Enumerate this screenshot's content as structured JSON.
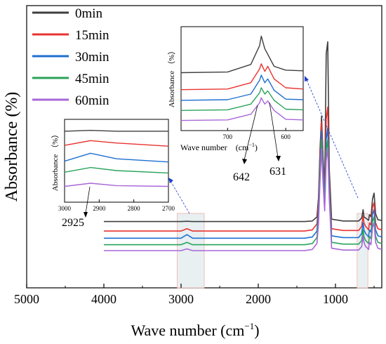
{
  "chart_data": [
    {
      "id": "main",
      "type": "line",
      "title": "",
      "xlabel": "Wave number (cm",
      "xlabel_sup": "−1",
      "xlabel_tail": ")",
      "ylabel": "Absorbance (%)",
      "xlim": [
        5000,
        400
      ],
      "x_ticks": [
        5000,
        4000,
        3000,
        2000,
        1000
      ],
      "x_tick_labels": [
        "5000",
        "4000",
        "3000",
        "2000",
        "1000"
      ],
      "grid": false,
      "legend_position": "top-left",
      "highlight_regions": [
        [
          3050,
          2700
        ],
        [
          720,
          580
        ]
      ],
      "series": [
        {
          "name": "0min",
          "color": "#3f3f3f",
          "baseline": 0.52,
          "x": [
            4000,
            3000,
            2925,
            2850,
            2000,
            1400,
            1300,
            1240,
            1220,
            1200,
            1180,
            1160,
            1140,
            1120,
            1100,
            1080,
            1050,
            900,
            700,
            660,
            642,
            631,
            610,
            570,
            560,
            540,
            520,
            500,
            480,
            450,
            400
          ],
          "y": [
            0.52,
            0.52,
            0.525,
            0.52,
            0.52,
            0.52,
            0.53,
            0.6,
            0.92,
            1.75,
            2.3,
            1.6,
            1.1,
            3.35,
            3.55,
            1.4,
            0.56,
            0.53,
            0.53,
            0.58,
            0.72,
            0.6,
            0.58,
            0.54,
            0.64,
            0.6,
            0.9,
            1.0,
            0.65,
            0.55,
            0.54
          ]
        },
        {
          "name": "15min",
          "color": "#e8332f",
          "baseline": 0.36,
          "x": [
            4000,
            3000,
            2925,
            2850,
            2000,
            1400,
            1300,
            1240,
            1220,
            1200,
            1180,
            1160,
            1140,
            1120,
            1100,
            1080,
            1050,
            900,
            700,
            660,
            642,
            631,
            610,
            570,
            560,
            540,
            520,
            500,
            480,
            450,
            400
          ],
          "y": [
            0.36,
            0.36,
            0.4,
            0.36,
            0.36,
            0.36,
            0.38,
            0.48,
            0.82,
            1.65,
            2.2,
            1.5,
            1.0,
            2.25,
            2.45,
            1.2,
            0.4,
            0.37,
            0.37,
            0.44,
            0.62,
            0.5,
            0.44,
            0.38,
            0.5,
            0.46,
            0.76,
            0.84,
            0.5,
            0.4,
            0.38
          ]
        },
        {
          "name": "30min",
          "color": "#1f6fd1",
          "baseline": 0.24,
          "x": [
            4000,
            3000,
            2925,
            2850,
            2000,
            1400,
            1300,
            1240,
            1220,
            1200,
            1180,
            1160,
            1140,
            1120,
            1100,
            1080,
            1050,
            900,
            700,
            660,
            642,
            631,
            610,
            570,
            560,
            540,
            520,
            500,
            480,
            450,
            400
          ],
          "y": [
            0.24,
            0.24,
            0.3,
            0.24,
            0.24,
            0.24,
            0.26,
            0.36,
            0.7,
            1.5,
            2.05,
            1.4,
            0.9,
            1.9,
            2.1,
            1.1,
            0.28,
            0.25,
            0.25,
            0.32,
            0.5,
            0.38,
            0.32,
            0.26,
            0.38,
            0.34,
            0.64,
            0.72,
            0.38,
            0.28,
            0.26
          ]
        },
        {
          "name": "45min",
          "color": "#2aa35a",
          "baseline": 0.13,
          "x": [
            4000,
            3000,
            2925,
            2850,
            2000,
            1400,
            1300,
            1240,
            1220,
            1200,
            1180,
            1160,
            1140,
            1120,
            1100,
            1080,
            1050,
            900,
            700,
            660,
            642,
            631,
            610,
            570,
            560,
            540,
            520,
            500,
            480,
            450,
            400
          ],
          "y": [
            0.13,
            0.13,
            0.17,
            0.13,
            0.13,
            0.13,
            0.15,
            0.25,
            0.58,
            1.35,
            1.9,
            1.28,
            0.8,
            1.7,
            1.9,
            1.0,
            0.17,
            0.14,
            0.14,
            0.2,
            0.38,
            0.27,
            0.2,
            0.15,
            0.27,
            0.23,
            0.52,
            0.6,
            0.27,
            0.17,
            0.15
          ]
        },
        {
          "name": "60min",
          "color": "#a866d8",
          "baseline": 0.03,
          "x": [
            4000,
            3000,
            2925,
            2850,
            2000,
            1400,
            1300,
            1240,
            1220,
            1200,
            1180,
            1160,
            1140,
            1120,
            1100,
            1080,
            1050,
            900,
            700,
            660,
            642,
            631,
            610,
            570,
            560,
            540,
            520,
            500,
            480,
            450,
            400
          ],
          "y": [
            0.03,
            0.03,
            0.06,
            0.03,
            0.03,
            0.03,
            0.05,
            0.15,
            0.48,
            1.2,
            1.75,
            1.15,
            0.7,
            1.55,
            1.75,
            0.9,
            0.07,
            0.04,
            0.04,
            0.1,
            0.28,
            0.17,
            0.1,
            0.05,
            0.17,
            0.13,
            0.42,
            0.5,
            0.17,
            0.07,
            0.05
          ]
        }
      ]
    },
    {
      "id": "inset-left",
      "type": "line",
      "xlabel": "Wave number",
      "xlabel_tail": "(cm",
      "xlabel_sup": "−1",
      "xlabel_close": ")",
      "ylabel": "Absorbance （%）",
      "xlim": [
        3000,
        2700
      ],
      "x_ticks": [
        3000,
        2900,
        2800,
        2700
      ],
      "x_tick_labels": [
        "3000",
        "2900",
        "2800",
        "2700"
      ],
      "annotation": "2925",
      "series": [
        {
          "name": "0min",
          "color": "#3f3f3f",
          "x": [
            3000,
            2925,
            2850,
            2700
          ],
          "y": [
            0.9,
            0.91,
            0.9,
            0.9
          ]
        },
        {
          "name": "15min",
          "color": "#e8332f",
          "x": [
            3000,
            2925,
            2850,
            2700
          ],
          "y": [
            0.72,
            0.78,
            0.75,
            0.71
          ]
        },
        {
          "name": "30min",
          "color": "#1f6fd1",
          "x": [
            3000,
            2925,
            2850,
            2700
          ],
          "y": [
            0.52,
            0.62,
            0.55,
            0.51
          ]
        },
        {
          "name": "45min",
          "color": "#2aa35a",
          "x": [
            3000,
            2925,
            2850,
            2700
          ],
          "y": [
            0.38,
            0.44,
            0.4,
            0.37
          ]
        },
        {
          "name": "60min",
          "color": "#a866d8",
          "x": [
            3000,
            2925,
            2850,
            2700
          ],
          "y": [
            0.2,
            0.24,
            0.21,
            0.2
          ]
        }
      ]
    },
    {
      "id": "inset-right",
      "type": "line",
      "xlabel": "Wave number",
      "xlabel_tail": "(cm",
      "xlabel_sup": "−1",
      "xlabel_close": ")",
      "ylabel": "Absorbance （%）",
      "xlim": [
        780,
        570
      ],
      "x_ticks": [
        700,
        600
      ],
      "x_tick_labels": [
        "700",
        "600"
      ],
      "annotations": [
        "642",
        "631"
      ],
      "series": [
        {
          "name": "0min",
          "color": "#3f3f3f",
          "x": [
            780,
            700,
            660,
            645,
            642,
            636,
            620,
            600,
            570
          ],
          "y": [
            0.92,
            0.93,
            1.05,
            1.35,
            1.5,
            1.3,
            1.02,
            0.96,
            0.95
          ]
        },
        {
          "name": "15min",
          "color": "#e8332f",
          "x": [
            780,
            700,
            660,
            645,
            642,
            636,
            631,
            620,
            600,
            570
          ],
          "y": [
            0.65,
            0.66,
            0.76,
            0.98,
            1.06,
            0.94,
            1.02,
            0.82,
            0.68,
            0.66
          ]
        },
        {
          "name": "30min",
          "color": "#1f6fd1",
          "x": [
            780,
            700,
            660,
            645,
            642,
            636,
            631,
            620,
            600,
            570
          ],
          "y": [
            0.48,
            0.49,
            0.58,
            0.8,
            0.88,
            0.76,
            0.82,
            0.64,
            0.5,
            0.49
          ]
        },
        {
          "name": "45min",
          "color": "#2aa35a",
          "x": [
            780,
            700,
            660,
            645,
            642,
            636,
            631,
            620,
            600,
            570
          ],
          "y": [
            0.32,
            0.33,
            0.42,
            0.6,
            0.68,
            0.58,
            0.63,
            0.48,
            0.34,
            0.33
          ]
        },
        {
          "name": "60min",
          "color": "#a866d8",
          "x": [
            780,
            700,
            660,
            645,
            642,
            636,
            631,
            620,
            600,
            570
          ],
          "y": [
            0.16,
            0.17,
            0.26,
            0.44,
            0.52,
            0.42,
            0.47,
            0.32,
            0.18,
            0.17
          ]
        }
      ]
    }
  ]
}
